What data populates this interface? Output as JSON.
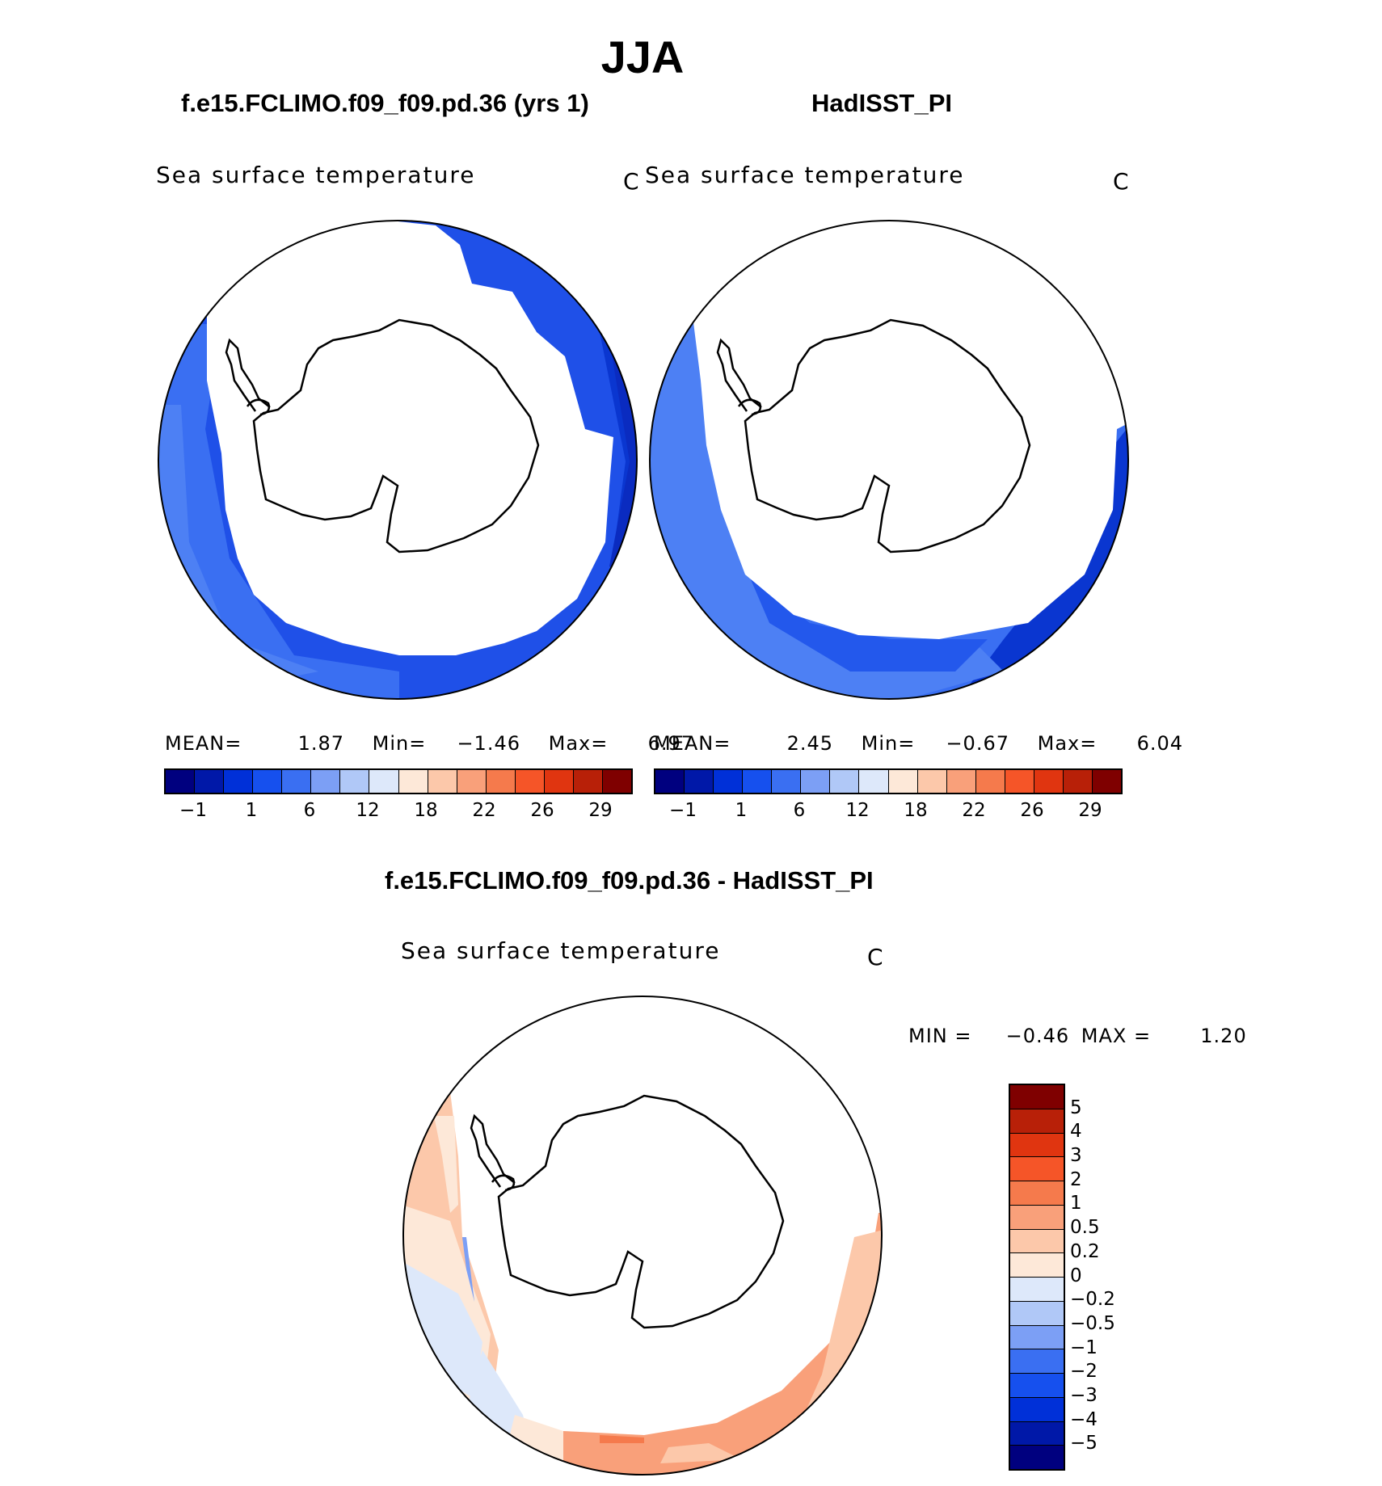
{
  "title": "JJA",
  "panels": [
    {
      "id": "model",
      "title": "f.e15.FCLIMO.f09_f09.pd.36 (yrs 1)",
      "variable": "Sea surface temperature",
      "units": "C",
      "stats": {
        "mean_label": "MEAN=",
        "mean": "1.87",
        "min_label": "Min=",
        "min": "−1.46",
        "max_label": "Max=",
        "max": "6.97"
      }
    },
    {
      "id": "obs",
      "title": "HadISST_PI",
      "variable": "Sea surface temperature",
      "units": "C",
      "stats": {
        "mean_label": "MEAN=",
        "mean": "2.45",
        "min_label": "Min=",
        "min": "−0.67",
        "max_label": "Max=",
        "max": "6.04"
      }
    }
  ],
  "top_colorbar": {
    "colors": [
      "#00007f",
      "#0018a8",
      "#0030d8",
      "#1650ee",
      "#3a6ff2",
      "#7c9ff5",
      "#b0c8f7",
      "#dde8fa",
      "#fde8d8",
      "#fcc8aa",
      "#f9a07a",
      "#f57a4c",
      "#f55528",
      "#e03510",
      "#b82008",
      "#7f0000"
    ],
    "tick_labels": [
      "−1",
      "1",
      "6",
      "12",
      "18",
      "22",
      "26",
      "29"
    ]
  },
  "difference": {
    "title": "f.e15.FCLIMO.f09_f09.pd.36 - HadISST_PI",
    "variable": "Sea surface temperature",
    "units": "C",
    "stats": {
      "min_label": "MIN =",
      "min": "−0.46",
      "max_label": "MAX =",
      "max": "1.20"
    },
    "colorbar": {
      "colors_top_to_bottom": [
        "#7f0000",
        "#b82008",
        "#e03510",
        "#f55528",
        "#f57a4c",
        "#f9a07a",
        "#fcc8aa",
        "#fde8d8",
        "#dde8fa",
        "#b0c8f7",
        "#7c9ff5",
        "#3a6ff2",
        "#1650ee",
        "#0030d8",
        "#0018a8",
        "#00007f"
      ],
      "tick_labels": [
        "5",
        "4",
        "3",
        "2",
        "1",
        "0.5",
        "0.2",
        "0",
        "−0.2",
        "−0.5",
        "−1",
        "−2",
        "−3",
        "−4",
        "−5"
      ]
    }
  }
}
